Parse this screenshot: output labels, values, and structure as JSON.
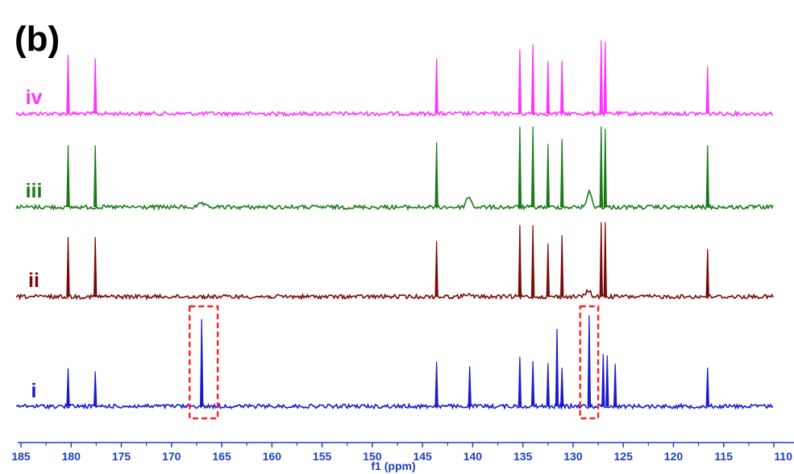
{
  "chart_data": {
    "type": "line",
    "title": "",
    "panel_label": "(b)",
    "xlabel": "f1 (ppm)",
    "ylabel": "",
    "xlim": [
      185,
      110
    ],
    "x_reversed": true,
    "x_ticks": [
      185,
      180,
      175,
      170,
      165,
      160,
      155,
      150,
      145,
      140,
      135,
      130,
      125,
      120,
      115,
      110
    ],
    "tick_labels": [
      "185",
      "180",
      "175",
      "170",
      "165",
      "160",
      "155",
      "150",
      "145",
      "140",
      "135",
      "130",
      "125",
      "120",
      "115",
      "110"
    ],
    "axis_color": "#1f3fbf",
    "grid": false,
    "legend": "none",
    "series": [
      {
        "name": "iv",
        "color": "#ff33ff",
        "peaks": [
          {
            "x": 180.3,
            "h": 1.0
          },
          {
            "x": 177.6,
            "h": 0.94
          },
          {
            "x": 143.6,
            "h": 0.94
          },
          {
            "x": 135.3,
            "h": 1.1
          },
          {
            "x": 134.0,
            "h": 1.18
          },
          {
            "x": 132.5,
            "h": 0.9
          },
          {
            "x": 131.1,
            "h": 0.9
          },
          {
            "x": 127.2,
            "h": 1.25
          },
          {
            "x": 126.8,
            "h": 1.22
          },
          {
            "x": 116.6,
            "h": 0.8
          }
        ],
        "broad": []
      },
      {
        "name": "iii",
        "color": "#1a7a1a",
        "peaks": [
          {
            "x": 180.3,
            "h": 1.0
          },
          {
            "x": 177.6,
            "h": 1.0
          },
          {
            "x": 143.6,
            "h": 1.04
          },
          {
            "x": 135.3,
            "h": 1.3
          },
          {
            "x": 134.0,
            "h": 1.3
          },
          {
            "x": 132.5,
            "h": 1.02
          },
          {
            "x": 131.1,
            "h": 1.1
          },
          {
            "x": 127.2,
            "h": 1.3
          },
          {
            "x": 126.8,
            "h": 1.26
          },
          {
            "x": 116.6,
            "h": 1.0
          }
        ],
        "broad": [
          {
            "x": 167.0,
            "h": 0.06
          },
          {
            "x": 140.4,
            "h": 0.17
          },
          {
            "x": 128.4,
            "h": 0.24
          }
        ]
      },
      {
        "name": "ii",
        "color": "#7a0a0a",
        "peaks": [
          {
            "x": 180.3,
            "h": 1.0
          },
          {
            "x": 177.6,
            "h": 1.0
          },
          {
            "x": 143.6,
            "h": 0.93
          },
          {
            "x": 135.3,
            "h": 1.2
          },
          {
            "x": 134.0,
            "h": 1.2
          },
          {
            "x": 132.5,
            "h": 0.89
          },
          {
            "x": 131.1,
            "h": 1.03
          },
          {
            "x": 127.2,
            "h": 1.25
          },
          {
            "x": 126.8,
            "h": 1.25
          },
          {
            "x": 116.6,
            "h": 0.8
          }
        ],
        "broad": [
          {
            "x": 140.6,
            "h": 0.05
          },
          {
            "x": 128.5,
            "h": 0.1
          }
        ]
      },
      {
        "name": "i",
        "color": "#1a1acc",
        "peaks": [
          {
            "x": 180.3,
            "h": 0.59
          },
          {
            "x": 177.6,
            "h": 0.54
          },
          {
            "x": 167.0,
            "h": 1.35
          },
          {
            "x": 143.6,
            "h": 0.69
          },
          {
            "x": 140.3,
            "h": 0.62
          },
          {
            "x": 135.3,
            "h": 0.77
          },
          {
            "x": 134.0,
            "h": 0.7
          },
          {
            "x": 132.5,
            "h": 0.67
          },
          {
            "x": 131.6,
            "h": 1.2
          },
          {
            "x": 131.1,
            "h": 0.6
          },
          {
            "x": 128.4,
            "h": 1.41
          },
          {
            "x": 127.0,
            "h": 0.81
          },
          {
            "x": 126.6,
            "h": 0.79
          },
          {
            "x": 125.8,
            "h": 0.66
          },
          {
            "x": 116.6,
            "h": 0.6
          }
        ],
        "broad": []
      }
    ],
    "annotations": [
      {
        "type": "dashed-box",
        "x_range": [
          168.2,
          165.4
        ],
        "trace": "i",
        "color": "#ff2222"
      },
      {
        "type": "dashed-box",
        "x_range": [
          129.3,
          127.5
        ],
        "trace": "i",
        "color": "#ff2222"
      }
    ]
  }
}
